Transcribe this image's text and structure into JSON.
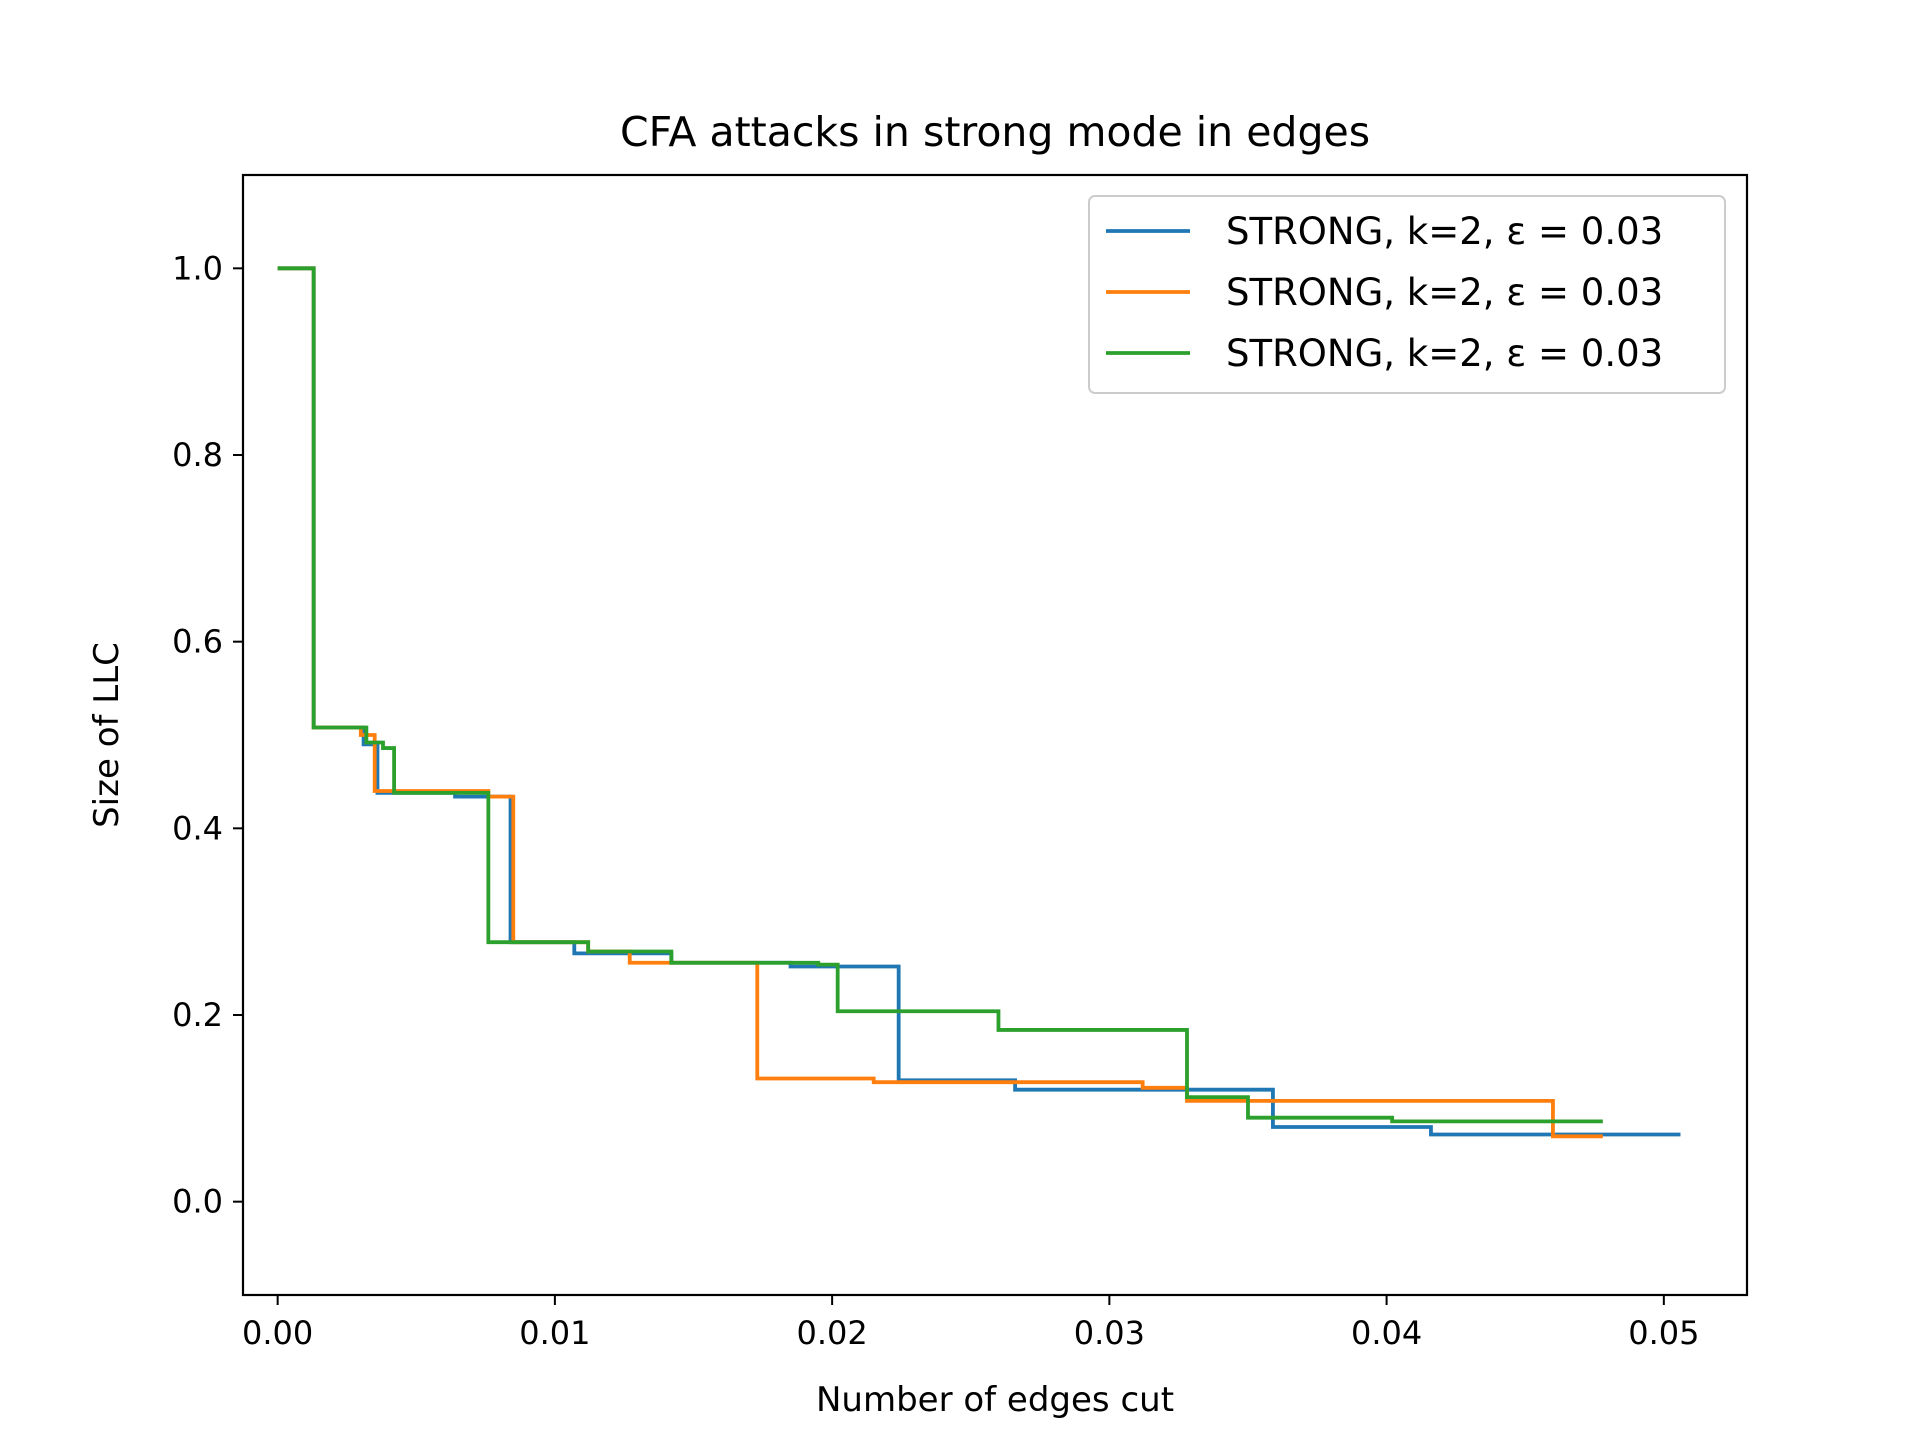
{
  "chart_data": {
    "type": "line",
    "step": true,
    "title": "CFA attacks in strong mode in edges",
    "xlabel": "Number of edges cut",
    "ylabel": "Size of LLC",
    "xlim": [
      -0.00125,
      0.053
    ],
    "ylim": [
      -0.1,
      1.1
    ],
    "xticks": [
      "0.00",
      "0.01",
      "0.02",
      "0.03",
      "0.04",
      "0.05"
    ],
    "xtick_values": [
      0.0,
      0.01,
      0.02,
      0.03,
      0.04,
      0.05
    ],
    "yticks": [
      "0.0",
      "0.2",
      "0.4",
      "0.6",
      "0.8",
      "1.0"
    ],
    "ytick_values": [
      0.0,
      0.2,
      0.4,
      0.6,
      0.8,
      1.0
    ],
    "grid": false,
    "legend_position": "top-right",
    "series": [
      {
        "name": "STRONG, k=2, ε = 0.03",
        "color": "#1f77b4",
        "points": [
          [
            0.0,
            1.0
          ],
          [
            0.0013,
            1.0
          ],
          [
            0.0013,
            0.508
          ],
          [
            0.0031,
            0.508
          ],
          [
            0.0031,
            0.49
          ],
          [
            0.0036,
            0.49
          ],
          [
            0.0036,
            0.438
          ],
          [
            0.0064,
            0.438
          ],
          [
            0.0064,
            0.434
          ],
          [
            0.0084,
            0.434
          ],
          [
            0.0084,
            0.278
          ],
          [
            0.0107,
            0.278
          ],
          [
            0.0107,
            0.266
          ],
          [
            0.0142,
            0.266
          ],
          [
            0.0142,
            0.256
          ],
          [
            0.0185,
            0.256
          ],
          [
            0.0185,
            0.252
          ],
          [
            0.0224,
            0.252
          ],
          [
            0.0224,
            0.13
          ],
          [
            0.0266,
            0.13
          ],
          [
            0.0266,
            0.12
          ],
          [
            0.0359,
            0.12
          ],
          [
            0.0359,
            0.08
          ],
          [
            0.0416,
            0.08
          ],
          [
            0.0416,
            0.072
          ],
          [
            0.0506,
            0.072
          ]
        ]
      },
      {
        "name": "STRONG, k=2, ε = 0.03",
        "color": "#ff7f0e",
        "points": [
          [
            0.0,
            1.0
          ],
          [
            0.0013,
            1.0
          ],
          [
            0.0013,
            0.508
          ],
          [
            0.003,
            0.508
          ],
          [
            0.003,
            0.5
          ],
          [
            0.0035,
            0.5
          ],
          [
            0.0035,
            0.44
          ],
          [
            0.0076,
            0.44
          ],
          [
            0.0076,
            0.434
          ],
          [
            0.0085,
            0.434
          ],
          [
            0.0085,
            0.278
          ],
          [
            0.0112,
            0.278
          ],
          [
            0.0112,
            0.268
          ],
          [
            0.0127,
            0.268
          ],
          [
            0.0127,
            0.256
          ],
          [
            0.0173,
            0.256
          ],
          [
            0.0173,
            0.132
          ],
          [
            0.0215,
            0.132
          ],
          [
            0.0215,
            0.128
          ],
          [
            0.0312,
            0.128
          ],
          [
            0.0312,
            0.122
          ],
          [
            0.0328,
            0.122
          ],
          [
            0.0328,
            0.108
          ],
          [
            0.046,
            0.108
          ],
          [
            0.046,
            0.07
          ],
          [
            0.0478,
            0.07
          ]
        ]
      },
      {
        "name": "STRONG, k=2, ε = 0.03",
        "color": "#2ca02c",
        "points": [
          [
            0.0,
            1.0
          ],
          [
            0.0013,
            1.0
          ],
          [
            0.0013,
            0.508
          ],
          [
            0.0032,
            0.508
          ],
          [
            0.0032,
            0.492
          ],
          [
            0.0038,
            0.492
          ],
          [
            0.0038,
            0.486
          ],
          [
            0.0042,
            0.486
          ],
          [
            0.0042,
            0.438
          ],
          [
            0.0076,
            0.438
          ],
          [
            0.0076,
            0.278
          ],
          [
            0.0112,
            0.278
          ],
          [
            0.0112,
            0.268
          ],
          [
            0.0142,
            0.268
          ],
          [
            0.0142,
            0.256
          ],
          [
            0.0195,
            0.256
          ],
          [
            0.0195,
            0.254
          ],
          [
            0.0202,
            0.254
          ],
          [
            0.0202,
            0.204
          ],
          [
            0.026,
            0.204
          ],
          [
            0.026,
            0.184
          ],
          [
            0.0328,
            0.184
          ],
          [
            0.0328,
            0.112
          ],
          [
            0.035,
            0.112
          ],
          [
            0.035,
            0.09
          ],
          [
            0.0402,
            0.09
          ],
          [
            0.0402,
            0.086
          ],
          [
            0.0478,
            0.086
          ]
        ]
      }
    ]
  }
}
